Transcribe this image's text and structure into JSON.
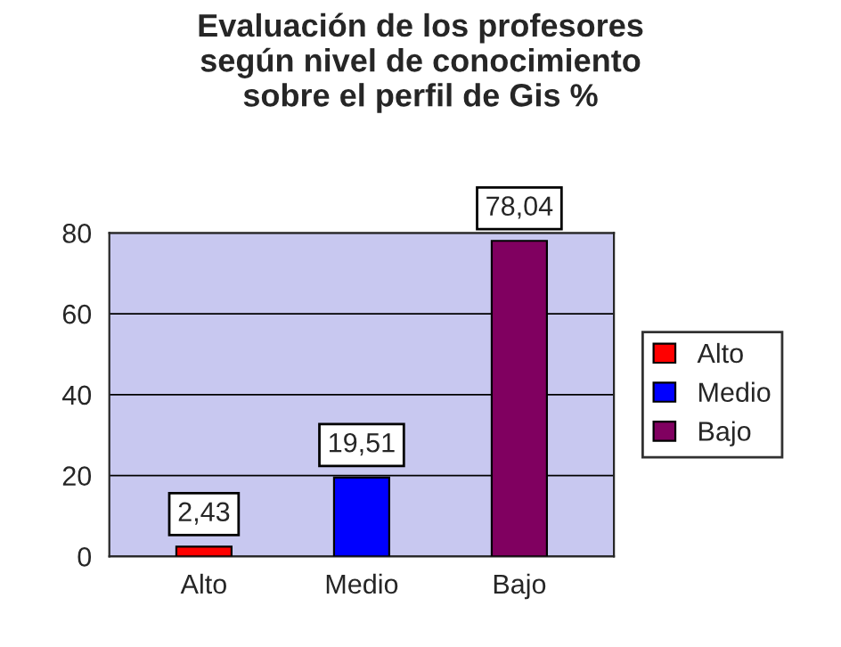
{
  "chart_data": {
    "type": "bar",
    "title": "Evaluación de los profesores\nsegún nivel de conocimiento\nsobre el perfil de Gis %",
    "categories": [
      "Alto",
      "Medio",
      "Bajo"
    ],
    "series": [
      {
        "name": "Alto",
        "color": "#ff0000",
        "values": [
          2.43,
          null,
          null
        ],
        "value_labels": [
          "2,43",
          null,
          null
        ]
      },
      {
        "name": "Medio",
        "color": "#0000ff",
        "values": [
          null,
          19.51,
          null
        ],
        "value_labels": [
          null,
          "19,51",
          null
        ]
      },
      {
        "name": "Bajo",
        "color": "#800060",
        "values": [
          null,
          null,
          78.04
        ],
        "value_labels": [
          null,
          null,
          "78,04"
        ]
      }
    ],
    "ylim": [
      0,
      80
    ],
    "yticks": [
      0,
      20,
      40,
      60,
      80
    ],
    "grid": "y",
    "legend": "right"
  }
}
